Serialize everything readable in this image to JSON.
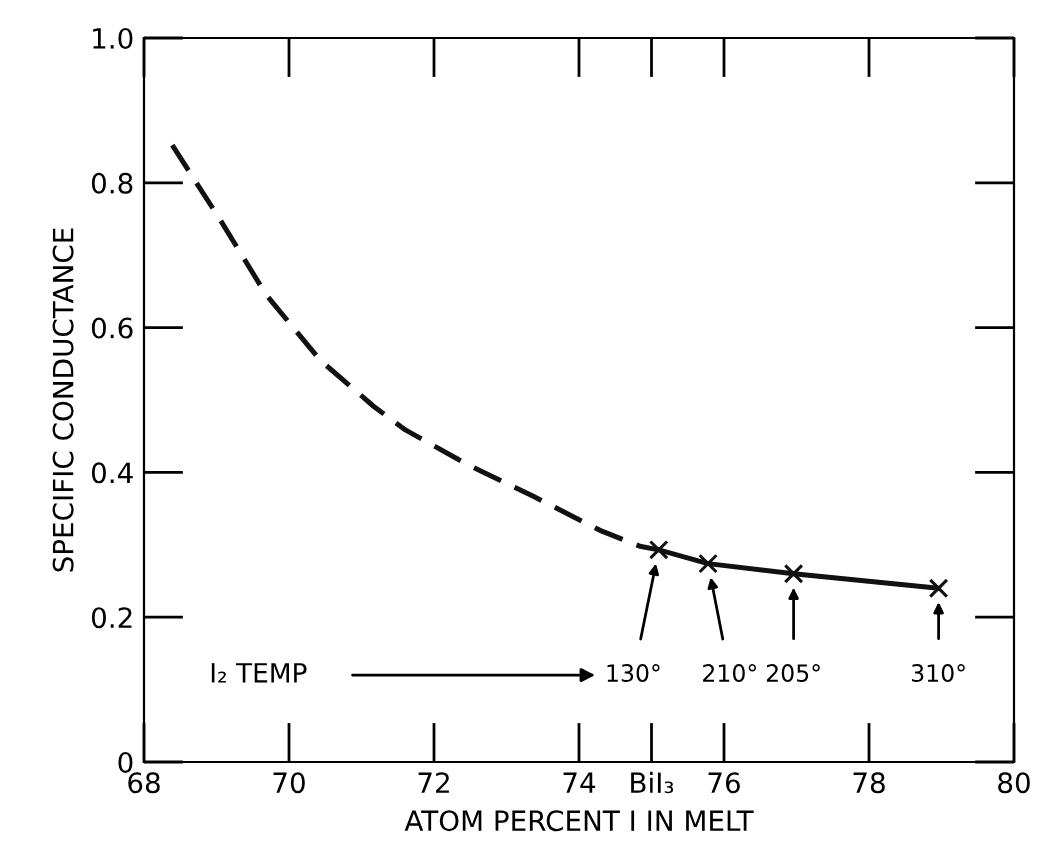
{
  "chart_data": {
    "type": "line",
    "xlabel": "ATOM PERCENT I IN MELT",
    "ylabel": "SPECIFIC CONDUCTANCE",
    "series": [
      {
        "color": "#111111",
        "line_style": "dashed",
        "marker": "none",
        "x": [
          68.39,
          69.05,
          69.68,
          70.43,
          71.17,
          71.6,
          72.44,
          73.37,
          74.29,
          74.84,
          75.1
        ],
        "values": [
          0.852,
          0.749,
          0.646,
          0.555,
          0.491,
          0.459,
          0.412,
          0.367,
          0.32,
          0.298,
          0.293
        ]
      },
      {
        "color": "#111111",
        "line_style": "solid",
        "marker": "cross",
        "x": [
          75.1,
          75.78,
          76.96,
          78.96
        ],
        "values": [
          0.293,
          0.274,
          0.26,
          0.24
        ]
      }
    ],
    "xlim": [
      68,
      80
    ],
    "xticks": [
      68,
      70,
      72,
      74,
      {
        "value": 75,
        "label": "BiI₃"
      },
      76,
      78,
      80
    ],
    "ylim": [
      0,
      1
    ],
    "yticks": [
      0,
      0.2,
      0.4,
      0.6,
      0.8,
      {
        "value": 1,
        "label": "1.0"
      }
    ],
    "grid": false,
    "annotations": [
      "I₂ TEMP",
      {
        "text": "130°",
        "x": 75.1,
        "y": 0.293
      },
      {
        "text": "210°",
        "x": 75.78,
        "y": 0.274
      },
      {
        "text": "205°",
        "x": 76.96,
        "y": 0.26
      },
      {
        "text": "310°",
        "x": 78.96,
        "y": 0.24
      }
    ]
  }
}
